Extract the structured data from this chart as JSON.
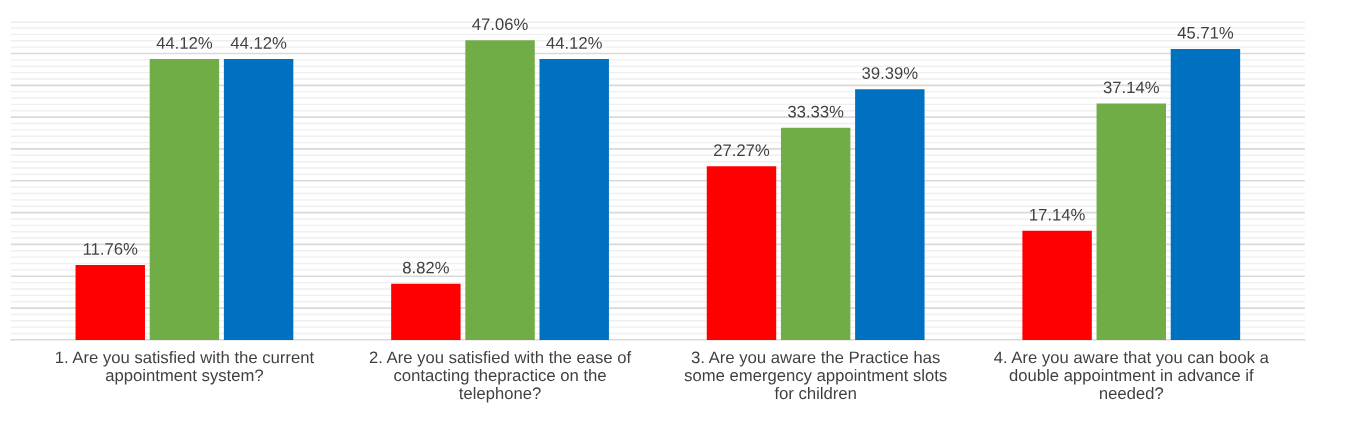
{
  "chart_data": {
    "type": "bar",
    "categories": [
      "1. Are you satisfied with the current\nappointment system?",
      "2. Are you satisfied with the ease of\ncontacting thepractice on the\ntelephone?",
      "3. Are you aware the Practice has\nsome emergency appointment slots\nfor children",
      "4. Are you aware that you can book a\ndouble appointment in advance if\nneeded?"
    ],
    "series": [
      {
        "color": "#ff0000",
        "values": [
          11.76,
          8.82,
          27.27,
          17.14
        ],
        "value_labels": [
          "11.76%",
          "8.82%",
          "27.27%",
          "17.14%"
        ]
      },
      {
        "color": "#70ad47",
        "values": [
          44.12,
          47.06,
          33.33,
          37.14
        ],
        "value_labels": [
          "44.12%",
          "47.06%",
          "33.33%",
          "37.14%"
        ]
      },
      {
        "color": "#0070c0",
        "values": [
          44.12,
          44.12,
          39.39,
          45.71
        ],
        "value_labels": [
          "44.12%",
          "44.12%",
          "39.39%",
          "45.71%"
        ]
      }
    ],
    "ylim": [
      0,
      50
    ],
    "yticks": [
      {
        "value": 0,
        "label": null
      },
      {
        "value": 5,
        "label": null
      },
      {
        "value": 10,
        "label": null
      },
      {
        "value": 15,
        "label": null
      },
      {
        "value": 20,
        "label": null
      },
      {
        "value": 25,
        "label": null
      },
      {
        "value": 30,
        "label": null
      },
      {
        "value": 35,
        "label": null
      },
      {
        "value": 40,
        "label": null
      },
      {
        "value": 45,
        "label": null
      },
      {
        "value": 50,
        "label": null
      }
    ],
    "grid": "y",
    "legend": false,
    "tick_labels": "x"
  }
}
